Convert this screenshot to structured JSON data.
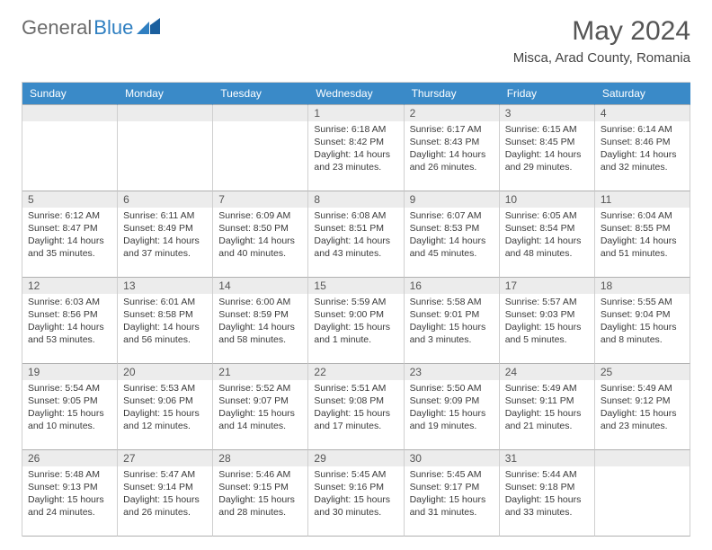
{
  "brand": {
    "word1": "General",
    "word2": "Blue"
  },
  "title": {
    "month": "May 2024",
    "location": "Misca, Arad County, Romania"
  },
  "colors": {
    "header_bg": "#3a8ac8",
    "header_text": "#ffffff",
    "daynum_bg": "#ececec",
    "cell_border": "#cfcfcf",
    "row_border": "#b0b0b0",
    "text": "#3a3a3a",
    "logo_gray": "#6b6b6b",
    "logo_blue": "#2f7fc1"
  },
  "dayHeaders": [
    "Sunday",
    "Monday",
    "Tuesday",
    "Wednesday",
    "Thursday",
    "Friday",
    "Saturday"
  ],
  "weeks": [
    [
      {
        "n": "",
        "sr": "",
        "ss": "",
        "dl": ""
      },
      {
        "n": "",
        "sr": "",
        "ss": "",
        "dl": ""
      },
      {
        "n": "",
        "sr": "",
        "ss": "",
        "dl": ""
      },
      {
        "n": "1",
        "sr": "6:18 AM",
        "ss": "8:42 PM",
        "dl": "14 hours and 23 minutes."
      },
      {
        "n": "2",
        "sr": "6:17 AM",
        "ss": "8:43 PM",
        "dl": "14 hours and 26 minutes."
      },
      {
        "n": "3",
        "sr": "6:15 AM",
        "ss": "8:45 PM",
        "dl": "14 hours and 29 minutes."
      },
      {
        "n": "4",
        "sr": "6:14 AM",
        "ss": "8:46 PM",
        "dl": "14 hours and 32 minutes."
      }
    ],
    [
      {
        "n": "5",
        "sr": "6:12 AM",
        "ss": "8:47 PM",
        "dl": "14 hours and 35 minutes."
      },
      {
        "n": "6",
        "sr": "6:11 AM",
        "ss": "8:49 PM",
        "dl": "14 hours and 37 minutes."
      },
      {
        "n": "7",
        "sr": "6:09 AM",
        "ss": "8:50 PM",
        "dl": "14 hours and 40 minutes."
      },
      {
        "n": "8",
        "sr": "6:08 AM",
        "ss": "8:51 PM",
        "dl": "14 hours and 43 minutes."
      },
      {
        "n": "9",
        "sr": "6:07 AM",
        "ss": "8:53 PM",
        "dl": "14 hours and 45 minutes."
      },
      {
        "n": "10",
        "sr": "6:05 AM",
        "ss": "8:54 PM",
        "dl": "14 hours and 48 minutes."
      },
      {
        "n": "11",
        "sr": "6:04 AM",
        "ss": "8:55 PM",
        "dl": "14 hours and 51 minutes."
      }
    ],
    [
      {
        "n": "12",
        "sr": "6:03 AM",
        "ss": "8:56 PM",
        "dl": "14 hours and 53 minutes."
      },
      {
        "n": "13",
        "sr": "6:01 AM",
        "ss": "8:58 PM",
        "dl": "14 hours and 56 minutes."
      },
      {
        "n": "14",
        "sr": "6:00 AM",
        "ss": "8:59 PM",
        "dl": "14 hours and 58 minutes."
      },
      {
        "n": "15",
        "sr": "5:59 AM",
        "ss": "9:00 PM",
        "dl": "15 hours and 1 minute."
      },
      {
        "n": "16",
        "sr": "5:58 AM",
        "ss": "9:01 PM",
        "dl": "15 hours and 3 minutes."
      },
      {
        "n": "17",
        "sr": "5:57 AM",
        "ss": "9:03 PM",
        "dl": "15 hours and 5 minutes."
      },
      {
        "n": "18",
        "sr": "5:55 AM",
        "ss": "9:04 PM",
        "dl": "15 hours and 8 minutes."
      }
    ],
    [
      {
        "n": "19",
        "sr": "5:54 AM",
        "ss": "9:05 PM",
        "dl": "15 hours and 10 minutes."
      },
      {
        "n": "20",
        "sr": "5:53 AM",
        "ss": "9:06 PM",
        "dl": "15 hours and 12 minutes."
      },
      {
        "n": "21",
        "sr": "5:52 AM",
        "ss": "9:07 PM",
        "dl": "15 hours and 14 minutes."
      },
      {
        "n": "22",
        "sr": "5:51 AM",
        "ss": "9:08 PM",
        "dl": "15 hours and 17 minutes."
      },
      {
        "n": "23",
        "sr": "5:50 AM",
        "ss": "9:09 PM",
        "dl": "15 hours and 19 minutes."
      },
      {
        "n": "24",
        "sr": "5:49 AM",
        "ss": "9:11 PM",
        "dl": "15 hours and 21 minutes."
      },
      {
        "n": "25",
        "sr": "5:49 AM",
        "ss": "9:12 PM",
        "dl": "15 hours and 23 minutes."
      }
    ],
    [
      {
        "n": "26",
        "sr": "5:48 AM",
        "ss": "9:13 PM",
        "dl": "15 hours and 24 minutes."
      },
      {
        "n": "27",
        "sr": "5:47 AM",
        "ss": "9:14 PM",
        "dl": "15 hours and 26 minutes."
      },
      {
        "n": "28",
        "sr": "5:46 AM",
        "ss": "9:15 PM",
        "dl": "15 hours and 28 minutes."
      },
      {
        "n": "29",
        "sr": "5:45 AM",
        "ss": "9:16 PM",
        "dl": "15 hours and 30 minutes."
      },
      {
        "n": "30",
        "sr": "5:45 AM",
        "ss": "9:17 PM",
        "dl": "15 hours and 31 minutes."
      },
      {
        "n": "31",
        "sr": "5:44 AM",
        "ss": "9:18 PM",
        "dl": "15 hours and 33 minutes."
      },
      {
        "n": "",
        "sr": "",
        "ss": "",
        "dl": ""
      }
    ]
  ],
  "labels": {
    "sunrise": "Sunrise:",
    "sunset": "Sunset:",
    "daylight": "Daylight:"
  }
}
